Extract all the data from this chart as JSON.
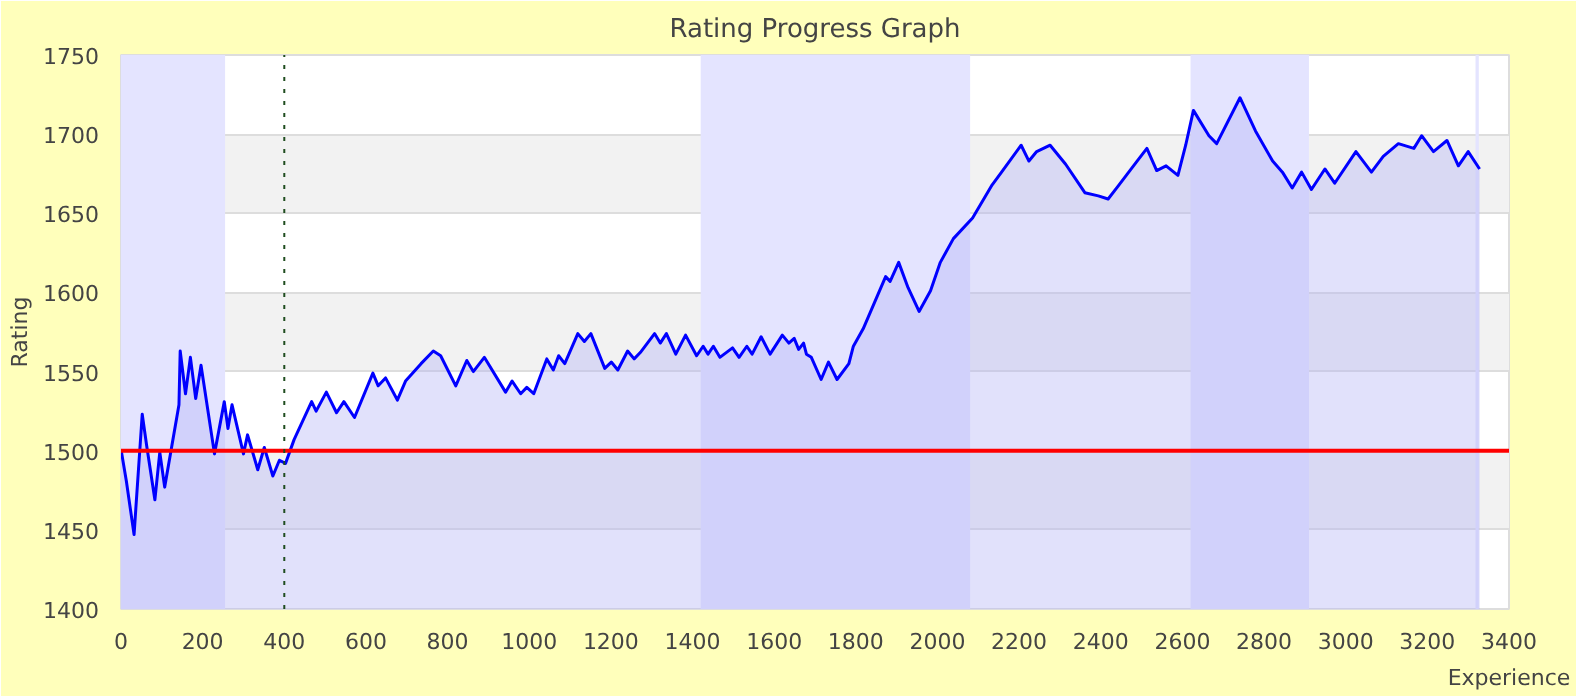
{
  "chart_data": {
    "type": "area",
    "title": "Rating Progress Graph",
    "xlabel": "Experience",
    "ylabel": "Rating",
    "xlim": [
      0,
      3400
    ],
    "xticks": [
      0,
      200,
      400,
      600,
      800,
      1000,
      1200,
      1400,
      1600,
      1800,
      2000,
      2200,
      2400,
      2600,
      2800,
      3000,
      3200,
      3400
    ],
    "ylim": [
      1400,
      1750
    ],
    "yticks": [
      1400,
      1450,
      1500,
      1550,
      1600,
      1650,
      1700,
      1750
    ],
    "grid": "y",
    "series": [
      {
        "color": "#0000ff",
        "x": [
          0,
          13,
          32,
          52,
          63,
          83,
          95,
          107,
          142,
          145,
          158,
          170,
          183,
          196,
          229,
          253,
          262,
          272,
          300,
          310,
          335,
          351,
          372,
          388,
          403,
          424,
          467,
          478,
          503,
          528,
          546,
          572,
          617,
          630,
          648,
          677,
          697,
          735,
          765,
          783,
          820,
          847,
          863,
          890,
          942,
          958,
          979,
          994,
          1011,
          1043,
          1059,
          1072,
          1087,
          1119,
          1135,
          1151,
          1185,
          1201,
          1217,
          1241,
          1257,
          1272,
          1307,
          1321,
          1336,
          1359,
          1383,
          1410,
          1426,
          1438,
          1451,
          1467,
          1498,
          1514,
          1533,
          1546,
          1568,
          1590,
          1620,
          1636,
          1649,
          1660,
          1672,
          1679,
          1691,
          1715,
          1733,
          1754,
          1783,
          1794,
          1818,
          1873,
          1884,
          1905,
          1928,
          1955,
          1983,
          2007,
          2039,
          2086,
          2134,
          2157,
          2205,
          2224,
          2243,
          2276,
          2314,
          2361,
          2394,
          2418,
          2442,
          2489,
          2513,
          2537,
          2560,
          2589,
          2608,
          2627,
          2665,
          2684,
          2741,
          2779,
          2821,
          2845,
          2869,
          2892,
          2916,
          2949,
          2973,
          3025,
          3063,
          3092,
          3129,
          3167,
          3186,
          3215,
          3248,
          3276,
          3300,
          3328
        ],
        "values": [
          1501,
          1481,
          1447,
          1523,
          1503,
          1469,
          1499,
          1477,
          1529,
          1563,
          1536,
          1559,
          1533,
          1554,
          1498,
          1531,
          1514,
          1529,
          1498,
          1510,
          1488,
          1502,
          1484,
          1494,
          1492,
          1507,
          1531,
          1525,
          1537,
          1524,
          1531,
          1521,
          1549,
          1541,
          1546,
          1532,
          1544,
          1555,
          1563,
          1560,
          1541,
          1557,
          1550,
          1559,
          1537,
          1544,
          1536,
          1540,
          1536,
          1558,
          1551,
          1560,
          1555,
          1574,
          1569,
          1574,
          1552,
          1556,
          1551,
          1563,
          1558,
          1562,
          1574,
          1568,
          1574,
          1561,
          1573,
          1560,
          1566,
          1561,
          1566,
          1559,
          1565,
          1559,
          1566,
          1561,
          1572,
          1561,
          1573,
          1568,
          1571,
          1564,
          1568,
          1561,
          1559,
          1545,
          1556,
          1545,
          1555,
          1566,
          1577,
          1610,
          1607,
          1619,
          1603,
          1588,
          1601,
          1619,
          1634,
          1647,
          1668,
          1676,
          1693,
          1683,
          1689,
          1693,
          1681,
          1663,
          1661,
          1659,
          1667,
          1683,
          1691,
          1677,
          1680,
          1674,
          1693,
          1715,
          1699,
          1694,
          1723,
          1702,
          1683,
          1676,
          1666,
          1676,
          1665,
          1678,
          1669,
          1689,
          1676,
          1686,
          1694,
          1691,
          1699,
          1689,
          1696,
          1680,
          1689,
          1678
        ]
      }
    ],
    "bands": [
      {
        "axis": "x",
        "from": 0,
        "to": 255,
        "color": "#e4e4ff"
      },
      {
        "axis": "x",
        "from": 1420,
        "to": 2080,
        "color": "#e4e4ff"
      },
      {
        "axis": "x",
        "from": 2620,
        "to": 2910,
        "color": "#e4e4ff"
      },
      {
        "axis": "x",
        "from": 3318,
        "to": 3326,
        "color": "#e4e4ff"
      }
    ],
    "ref_lines": [
      {
        "axis": "y",
        "value": 1500,
        "color": "#ff0000",
        "line_style": "solid"
      },
      {
        "axis": "x",
        "value": 400,
        "color": "#1f4d1f",
        "line_style": "dotted"
      }
    ]
  }
}
